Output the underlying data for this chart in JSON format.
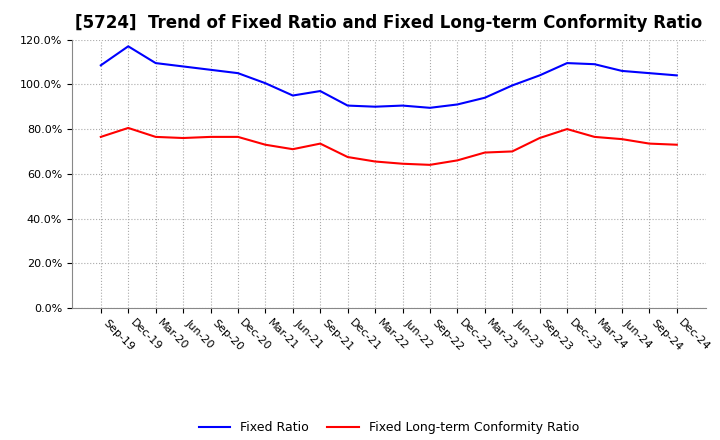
{
  "title": "[5724]  Trend of Fixed Ratio and Fixed Long-term Conformity Ratio",
  "x_labels": [
    "Sep-19",
    "Dec-19",
    "Mar-20",
    "Jun-20",
    "Sep-20",
    "Dec-20",
    "Mar-21",
    "Jun-21",
    "Sep-21",
    "Dec-21",
    "Mar-22",
    "Jun-22",
    "Sep-22",
    "Dec-22",
    "Mar-23",
    "Jun-23",
    "Sep-23",
    "Dec-23",
    "Mar-24",
    "Jun-24",
    "Sep-24",
    "Dec-24"
  ],
  "fixed_ratio": [
    108.5,
    117.0,
    109.5,
    108.0,
    106.5,
    105.0,
    100.5,
    95.0,
    97.0,
    90.5,
    90.0,
    90.5,
    89.5,
    91.0,
    94.0,
    99.5,
    104.0,
    109.5,
    109.0,
    106.0,
    105.0,
    104.0
  ],
  "fixed_lt_ratio": [
    76.5,
    80.5,
    76.5,
    76.0,
    76.5,
    76.5,
    73.0,
    71.0,
    73.5,
    67.5,
    65.5,
    64.5,
    64.0,
    66.0,
    69.5,
    70.0,
    76.0,
    80.0,
    76.5,
    75.5,
    73.5,
    73.0
  ],
  "fixed_ratio_color": "#0000FF",
  "fixed_lt_ratio_color": "#FF0000",
  "ylim": [
    0,
    120
  ],
  "yticks": [
    0,
    20,
    40,
    60,
    80,
    100,
    120
  ],
  "background_color": "#FFFFFF",
  "grid_color": "#AAAAAA",
  "title_fontsize": 12,
  "tick_fontsize": 8,
  "legend_fixed": "Fixed Ratio",
  "legend_fixed_lt": "Fixed Long-term Conformity Ratio"
}
